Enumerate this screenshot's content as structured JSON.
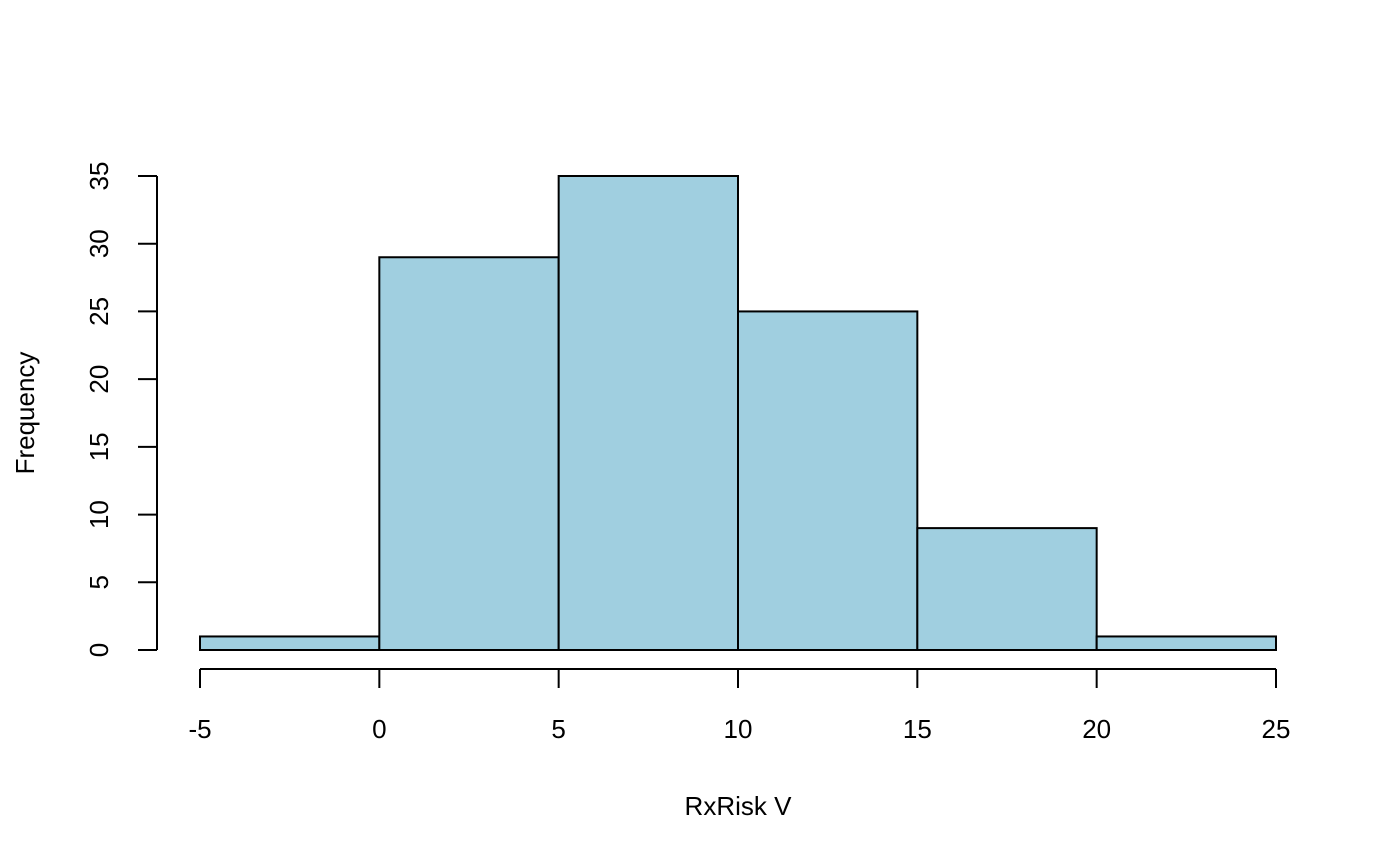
{
  "chart_data": {
    "type": "bar",
    "title": "",
    "xlabel": "RxRisk V",
    "ylabel": "Frequency",
    "bins": [
      {
        "from": -5,
        "to": 0,
        "count": 1
      },
      {
        "from": 0,
        "to": 5,
        "count": 29
      },
      {
        "from": 5,
        "to": 10,
        "count": 35
      },
      {
        "from": 10,
        "to": 15,
        "count": 25
      },
      {
        "from": 15,
        "to": 20,
        "count": 9
      },
      {
        "from": 20,
        "to": 25,
        "count": 1
      }
    ],
    "xlim": [
      -5,
      25
    ],
    "ylim": [
      0,
      35
    ],
    "xticks": [
      -5,
      0,
      5,
      10,
      15,
      20,
      25
    ],
    "yticks": [
      0,
      5,
      10,
      15,
      20,
      25,
      30,
      35
    ],
    "grid": false,
    "legend": "none",
    "bar_color": "#a0cfe0",
    "edge_color": "#000000"
  }
}
